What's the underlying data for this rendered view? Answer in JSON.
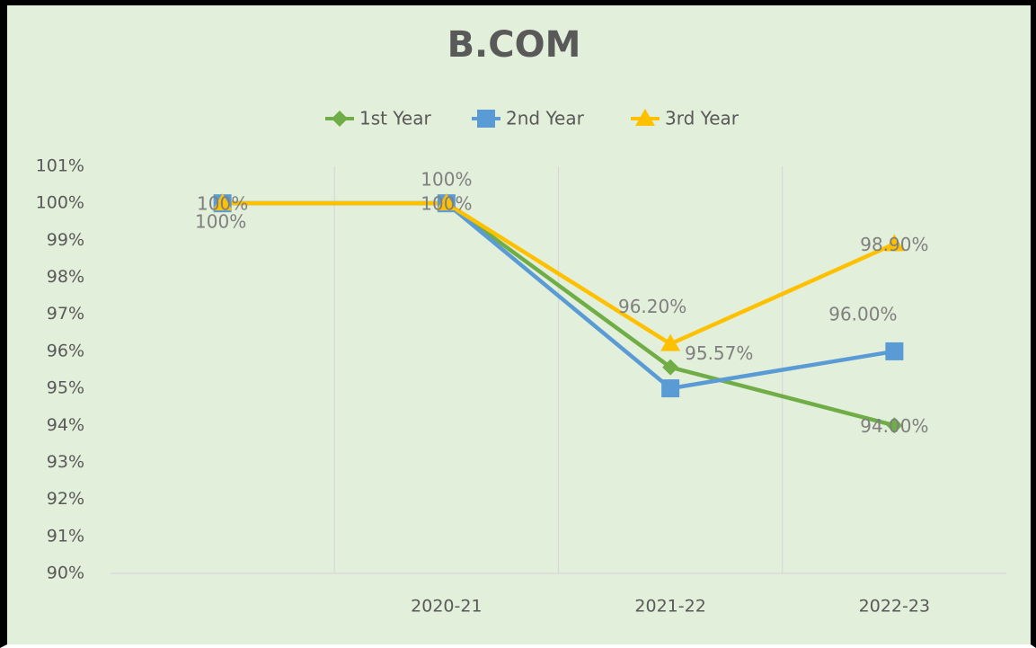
{
  "chart_data": {
    "type": "line",
    "title": "B.COM",
    "categories": [
      null,
      "2020-21",
      "2021-22",
      "2022-23"
    ],
    "series": [
      {
        "name": "1st Year",
        "color": "#70ad47",
        "marker": "diamond",
        "values": [
          100,
          100,
          95.57,
          94
        ],
        "value_labels": [
          "100%",
          "100%",
          "95.57%",
          "94.00%"
        ]
      },
      {
        "name": "2nd Year",
        "color": "#5b9bd5",
        "marker": "square",
        "values": [
          100,
          100,
          95,
          96
        ],
        "value_labels": [
          null,
          null,
          null,
          "96.00%"
        ]
      },
      {
        "name": "3rd Year",
        "color": "#ffc000",
        "marker": "triangle",
        "values": [
          100,
          100,
          96.2,
          98.9
        ],
        "value_labels": [
          "100%",
          "100%",
          "96.20%",
          "98.90%"
        ]
      }
    ],
    "ylim": [
      90,
      101
    ],
    "yticks": [
      {
        "value": 90,
        "label": "90%"
      },
      {
        "value": 91,
        "label": "91%"
      },
      {
        "value": 92,
        "label": "92%"
      },
      {
        "value": 93,
        "label": "93%"
      },
      {
        "value": 94,
        "label": "94%"
      },
      {
        "value": 95,
        "label": "95%"
      },
      {
        "value": 96,
        "label": "96%"
      },
      {
        "value": 97,
        "label": "97%"
      },
      {
        "value": 98,
        "label": "98%"
      },
      {
        "value": 99,
        "label": "99%"
      },
      {
        "value": 100,
        "label": "100%"
      },
      {
        "value": 101,
        "label": "101%"
      }
    ],
    "legend": "top",
    "grid": "vertical"
  }
}
